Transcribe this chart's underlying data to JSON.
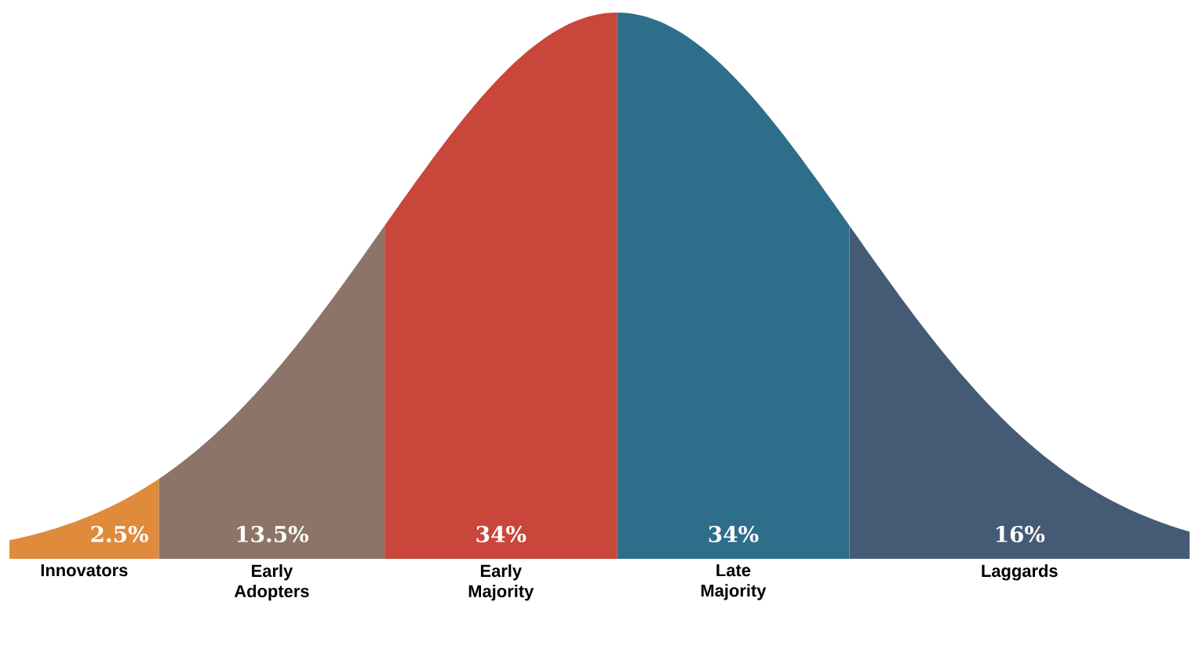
{
  "chart_data": {
    "type": "other",
    "categories": [
      "Innovators",
      "Early Adopters",
      "Early Majority",
      "Late Majority",
      "Laggards"
    ],
    "values": [
      2.5,
      13.5,
      34,
      34,
      16
    ],
    "value_labels": [
      "2.5%",
      "13.5%",
      "34%",
      "34%",
      "16%"
    ],
    "colors": [
      "#e08a3c",
      "#8c7468",
      "#c8473a",
      "#2e6e8a",
      "#455a74"
    ]
  }
}
